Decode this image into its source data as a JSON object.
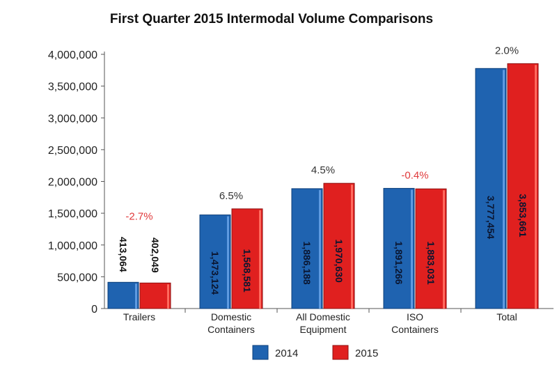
{
  "chart_data": {
    "type": "bar",
    "title": "First Quarter 2015 Intermodal Volume Comparisons",
    "xlabel": "",
    "ylabel": "",
    "ylim": [
      0,
      4000000
    ],
    "yticks": [
      "0",
      "500,000",
      "1,000,000",
      "1,500,000",
      "2,000,000",
      "2,500,000",
      "3,000,000",
      "3,500,000",
      "4,000,000"
    ],
    "ytick_values": [
      0,
      500000,
      1000000,
      1500000,
      2000000,
      2500000,
      3000000,
      3500000,
      4000000
    ],
    "grid": false,
    "legend_position": "bottom",
    "categories": [
      [
        "Trailers"
      ],
      [
        "Domestic",
        "Containers"
      ],
      [
        "All Domestic",
        "Equipment"
      ],
      [
        "ISO",
        "Containers"
      ],
      [
        "Total"
      ]
    ],
    "series": [
      {
        "name": "2014",
        "color": "#1f63b0",
        "values": [
          413064,
          1473124,
          1886188,
          1891266,
          3777454
        ],
        "labels": [
          "413,064",
          "1,473,124",
          "1,886,188",
          "1,891,266",
          "3,777,454"
        ]
      },
      {
        "name": "2015",
        "color": "#e0201f",
        "values": [
          402049,
          1568581,
          1970630,
          1883031,
          3853661
        ],
        "labels": [
          "402,049",
          "1,568,581",
          "1,970,630",
          "1,883,031",
          "3,853,661"
        ]
      }
    ],
    "changes": [
      "-2.7%",
      "6.5%",
      "4.5%",
      "-0.4%",
      "2.0%"
    ],
    "change_colors": {
      "positive": "#333333",
      "negative": "#e0393b"
    }
  }
}
